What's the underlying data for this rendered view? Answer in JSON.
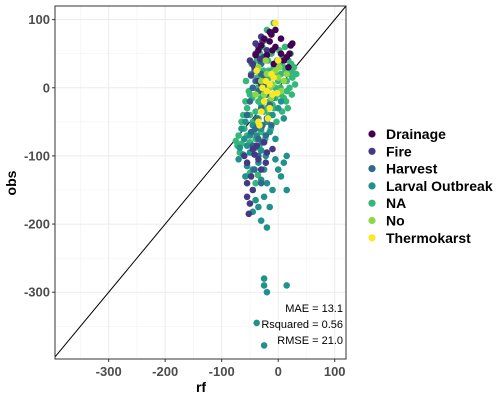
{
  "chart_data": {
    "type": "scatter",
    "title": "",
    "xlabel": "rf",
    "ylabel": "obs",
    "xlim": [
      -395,
      120
    ],
    "ylim": [
      -398,
      120
    ],
    "x_ticks": [
      -300,
      -200,
      -100,
      0,
      100
    ],
    "y_ticks": [
      -300,
      -200,
      -100,
      0,
      100
    ],
    "grid": true,
    "reference_line": "y = x",
    "legend_position": "right",
    "stats": [
      "MAE = 13.1",
      "Rsquared = 0.56",
      "RMSE = 21.0"
    ],
    "series": [
      {
        "name": "Drainage",
        "color": "#440154",
        "points": [
          [
            -15,
            68
          ],
          [
            -5,
            60
          ],
          [
            -10,
            55
          ],
          [
            5,
            50
          ],
          [
            15,
            45
          ],
          [
            -25,
            72
          ],
          [
            -30,
            62
          ],
          [
            10,
            40
          ],
          [
            -20,
            48
          ],
          [
            25,
            65
          ],
          [
            -8,
            35
          ],
          [
            -35,
            55
          ],
          [
            18,
            30
          ],
          [
            -12,
            78
          ],
          [
            5,
            72
          ],
          [
            -40,
            48
          ],
          [
            20,
            50
          ],
          [
            -5,
            85
          ],
          [
            22,
            62
          ],
          [
            -15,
            82
          ]
        ]
      },
      {
        "name": "Fire",
        "color": "#443983",
        "points": [
          [
            -40,
            50
          ],
          [
            -35,
            60
          ],
          [
            -45,
            35
          ],
          [
            -50,
            40
          ],
          [
            -30,
            75
          ],
          [
            -20,
            55
          ],
          [
            -42,
            30
          ],
          [
            -38,
            25
          ],
          [
            -48,
            18
          ],
          [
            -35,
            10
          ],
          [
            -30,
            5
          ],
          [
            -25,
            45
          ],
          [
            -40,
            65
          ],
          [
            -55,
            -110
          ],
          [
            -48,
            -130
          ],
          [
            -45,
            -150
          ],
          [
            -55,
            -160
          ],
          [
            -50,
            -170
          ],
          [
            -52,
            -185
          ],
          [
            -60,
            -100
          ],
          [
            -45,
            -90
          ],
          [
            -35,
            -105
          ],
          [
            -30,
            -120
          ],
          [
            -20,
            -95
          ],
          [
            -22,
            -110
          ],
          [
            -10,
            -90
          ],
          [
            -28,
            68
          ],
          [
            -32,
            42
          ],
          [
            -55,
            -140
          ],
          [
            -42,
            -98
          ],
          [
            -25,
            -80
          ],
          [
            -38,
            -85
          ]
        ]
      },
      {
        "name": "Harvest",
        "color": "#31688e",
        "points": [
          [
            -40,
            10
          ],
          [
            -30,
            20
          ],
          [
            -35,
            -5
          ],
          [
            -25,
            5
          ],
          [
            -20,
            -10
          ],
          [
            -45,
            0
          ],
          [
            -30,
            -30
          ],
          [
            -38,
            -45
          ],
          [
            -28,
            -55
          ],
          [
            -40,
            -60
          ],
          [
            -35,
            -75
          ],
          [
            -20,
            -45
          ],
          [
            -15,
            -25
          ],
          [
            -30,
            35
          ],
          [
            -42,
            25
          ],
          [
            -50,
            -20
          ],
          [
            -55,
            -40
          ],
          [
            -25,
            15
          ],
          [
            -18,
            0
          ],
          [
            -10,
            -15
          ],
          [
            -45,
            -85
          ],
          [
            -35,
            -100
          ],
          [
            -30,
            -140
          ],
          [
            -42,
            -120
          ],
          [
            -22,
            -70
          ],
          [
            -12,
            -55
          ],
          [
            -48,
            -65
          ],
          [
            -28,
            -80
          ]
        ]
      },
      {
        "name": "Larval Outbreak",
        "color": "#21918c",
        "points": [
          [
            -30,
            -135
          ],
          [
            -20,
            -140
          ],
          [
            -40,
            -165
          ],
          [
            -25,
            -160
          ],
          [
            -35,
            -175
          ],
          [
            -45,
            -182
          ],
          [
            -30,
            -195
          ],
          [
            -20,
            -205
          ],
          [
            -15,
            -175
          ],
          [
            -10,
            -150
          ],
          [
            -25,
            -120
          ],
          [
            -35,
            -110
          ],
          [
            -45,
            -120
          ],
          [
            -55,
            -115
          ],
          [
            -58,
            -130
          ],
          [
            -50,
            -95
          ],
          [
            -40,
            -88
          ],
          [
            -30,
            -92
          ],
          [
            -22,
            -100
          ],
          [
            -25,
            -280
          ],
          [
            -20,
            -300
          ],
          [
            -25,
            -290
          ],
          [
            15,
            -290
          ],
          [
            15,
            -150
          ],
          [
            15,
            -100
          ],
          [
            10,
            -110
          ],
          [
            -5,
            -105
          ],
          [
            0,
            -120
          ],
          [
            5,
            -130
          ],
          [
            -38,
            -345
          ],
          [
            -25,
            -378
          ],
          [
            -60,
            -75
          ],
          [
            -50,
            -70
          ],
          [
            -65,
            -60
          ],
          [
            -58,
            -50
          ],
          [
            -45,
            -55
          ],
          [
            -38,
            -70
          ],
          [
            -30,
            -60
          ],
          [
            -20,
            -50
          ],
          [
            -10,
            -40
          ],
          [
            0,
            -30
          ],
          [
            5,
            -20
          ],
          [
            -15,
            -65
          ],
          [
            -5,
            -75
          ],
          [
            10,
            -45
          ],
          [
            -68,
            -88
          ],
          [
            -62,
            -98
          ],
          [
            -70,
            -105
          ],
          [
            -55,
            -85
          ]
        ]
      },
      {
        "name": "NA",
        "color": "#35b779",
        "points": [
          [
            -50,
            -10
          ],
          [
            -45,
            0
          ],
          [
            -40,
            10
          ],
          [
            -35,
            -20
          ],
          [
            -30,
            -15
          ],
          [
            -25,
            -5
          ],
          [
            -20,
            5
          ],
          [
            -15,
            15
          ],
          [
            -10,
            -10
          ],
          [
            -5,
            0
          ],
          [
            0,
            10
          ],
          [
            5,
            20
          ],
          [
            10,
            30
          ],
          [
            15,
            -5
          ],
          [
            20,
            0
          ],
          [
            25,
            15
          ],
          [
            30,
            5
          ],
          [
            -55,
            -30
          ],
          [
            -50,
            -40
          ],
          [
            -45,
            -50
          ],
          [
            -40,
            -35
          ],
          [
            -35,
            -45
          ],
          [
            -30,
            -25
          ],
          [
            -25,
            -35
          ],
          [
            -20,
            -30
          ],
          [
            -15,
            -20
          ],
          [
            -10,
            -25
          ],
          [
            -5,
            -15
          ],
          [
            0,
            -5
          ],
          [
            5,
            -10
          ],
          [
            10,
            -15
          ],
          [
            15,
            10
          ],
          [
            20,
            20
          ],
          [
            25,
            25
          ],
          [
            -60,
            -60
          ],
          [
            -55,
            -70
          ],
          [
            -50,
            -80
          ],
          [
            -45,
            -65
          ],
          [
            -40,
            -75
          ],
          [
            -35,
            -55
          ],
          [
            -30,
            -65
          ],
          [
            -65,
            -50
          ],
          [
            -62,
            -40
          ],
          [
            -58,
            -20
          ],
          [
            -48,
            20
          ],
          [
            -42,
            30
          ],
          [
            -38,
            40
          ],
          [
            -32,
            50
          ],
          [
            -28,
            60
          ],
          [
            -22,
            70
          ],
          [
            -18,
            40
          ],
          [
            -12,
            50
          ],
          [
            -8,
            30
          ],
          [
            -2,
            40
          ],
          [
            2,
            55
          ],
          [
            8,
            45
          ],
          [
            12,
            60
          ],
          [
            18,
            40
          ],
          [
            22,
            50
          ],
          [
            28,
            30
          ],
          [
            32,
            20
          ],
          [
            -70,
            -70
          ],
          [
            -72,
            -85
          ],
          [
            -68,
            -95
          ],
          [
            -75,
            -78
          ],
          [
            -65,
            -82
          ],
          [
            -52,
            -5
          ],
          [
            -46,
            -15
          ],
          [
            -36,
            0
          ],
          [
            -26,
            25
          ],
          [
            -16,
            -40
          ],
          [
            -6,
            20
          ],
          [
            4,
            0
          ],
          [
            14,
            -20
          ],
          [
            24,
            -10
          ],
          [
            -33,
            -85
          ],
          [
            -23,
            -75
          ],
          [
            -13,
            -60
          ],
          [
            -3,
            -50
          ],
          [
            7,
            -35
          ],
          [
            17,
            -30
          ],
          [
            -57,
            10
          ],
          [
            -47,
            35
          ],
          [
            -37,
            15
          ],
          [
            -27,
            -10
          ],
          [
            -17,
            25
          ],
          [
            -7,
            -30
          ],
          [
            3,
            35
          ],
          [
            13,
            25
          ],
          [
            23,
            35
          ],
          [
            -20,
            85
          ],
          [
            -8,
            95
          ],
          [
            -40,
            -140
          ],
          [
            -50,
            -125
          ],
          [
            -36,
            -128
          ]
        ]
      },
      {
        "name": "No",
        "color": "#8fd744",
        "points": [
          [
            -30,
            10
          ],
          [
            -20,
            20
          ],
          [
            -10,
            5
          ],
          [
            0,
            15
          ],
          [
            -25,
            -10
          ],
          [
            -15,
            0
          ],
          [
            -5,
            25
          ],
          [
            5,
            -5
          ],
          [
            -35,
            30
          ],
          [
            10,
            10
          ],
          [
            -40,
            -10
          ],
          [
            -22,
            40
          ],
          [
            -12,
            -15
          ],
          [
            2,
            30
          ],
          [
            15,
            20
          ]
        ]
      },
      {
        "name": "Thermokarst",
        "color": "#fde725",
        "points": [
          [
            -5,
            95
          ],
          [
            -20,
            -5
          ],
          [
            -15,
            5
          ],
          [
            -10,
            -10
          ],
          [
            -25,
            -20
          ],
          [
            -12,
            20
          ],
          [
            -30,
            -35
          ],
          [
            -18,
            -45
          ],
          [
            -8,
            15
          ],
          [
            -28,
            0
          ],
          [
            -22,
            10
          ],
          [
            -38,
            25
          ],
          [
            -35,
            -50
          ],
          [
            -33,
            -55
          ],
          [
            0,
            40
          ],
          [
            -2,
            -8
          ],
          [
            -15,
            -30
          ]
        ]
      }
    ]
  }
}
